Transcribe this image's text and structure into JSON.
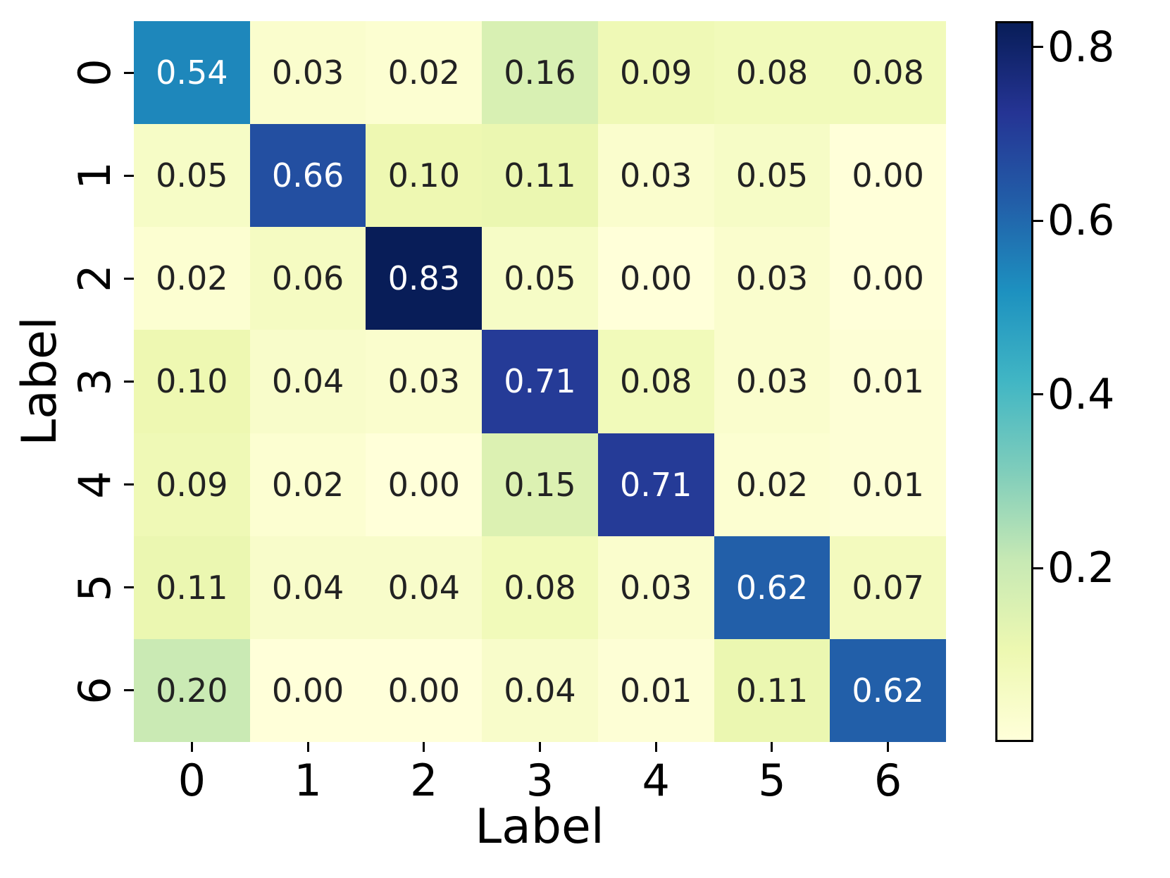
{
  "chart_data": {
    "type": "heatmap",
    "title": "",
    "xlabel": "Label",
    "ylabel": "Label",
    "x_categories": [
      "0",
      "1",
      "2",
      "3",
      "4",
      "5",
      "6"
    ],
    "y_categories": [
      "0",
      "1",
      "2",
      "3",
      "4",
      "5",
      "6"
    ],
    "matrix": [
      [
        0.54,
        0.03,
        0.02,
        0.16,
        0.09,
        0.08,
        0.08
      ],
      [
        0.05,
        0.66,
        0.1,
        0.11,
        0.03,
        0.05,
        0.0
      ],
      [
        0.02,
        0.06,
        0.83,
        0.05,
        0.0,
        0.03,
        0.0
      ],
      [
        0.1,
        0.04,
        0.03,
        0.71,
        0.08,
        0.03,
        0.01
      ],
      [
        0.09,
        0.02,
        0.0,
        0.15,
        0.71,
        0.02,
        0.01
      ],
      [
        0.11,
        0.04,
        0.04,
        0.08,
        0.03,
        0.62,
        0.07
      ],
      [
        0.2,
        0.0,
        0.0,
        0.04,
        0.01,
        0.11,
        0.62
      ]
    ],
    "annotation_decimals": 2,
    "vmin": 0.0,
    "vmax": 0.83,
    "grid": false,
    "colormap": {
      "name": "YlGnBu",
      "anchors": [
        "#ffffd9",
        "#edf8b1",
        "#c7e9b4",
        "#7fcdbb",
        "#41b6c4",
        "#1d91c0",
        "#225ea8",
        "#253494",
        "#081d58"
      ]
    },
    "colorbar": {
      "position": "right",
      "tick_labels": [
        "0.8",
        "0.6",
        "0.4",
        "0.2"
      ],
      "tick_values": [
        0.8,
        0.6,
        0.4,
        0.2
      ]
    },
    "annotation_color_light": "#ffffff",
    "annotation_color_dark": "#222222",
    "background": "#ffffff"
  }
}
